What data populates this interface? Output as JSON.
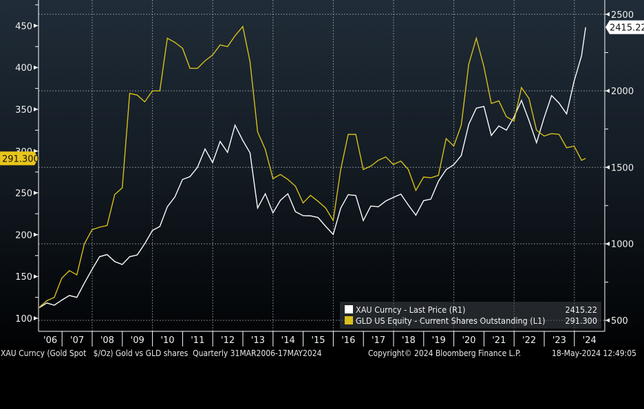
{
  "chart_data": {
    "type": "line",
    "x_dates": [
      "2006-03-31",
      "2006-06-30",
      "2006-09-29",
      "2006-12-29",
      "2007-03-30",
      "2007-06-29",
      "2007-09-28",
      "2007-12-31",
      "2008-03-31",
      "2008-06-30",
      "2008-09-30",
      "2008-12-31",
      "2009-03-31",
      "2009-06-30",
      "2009-09-30",
      "2009-12-31",
      "2010-03-31",
      "2010-06-30",
      "2010-09-30",
      "2010-12-31",
      "2011-03-31",
      "2011-06-30",
      "2011-09-30",
      "2011-12-30",
      "2012-03-30",
      "2012-06-29",
      "2012-09-28",
      "2012-12-31",
      "2013-03-29",
      "2013-06-28",
      "2013-09-30",
      "2013-12-31",
      "2014-03-31",
      "2014-06-30",
      "2014-09-30",
      "2014-12-31",
      "2015-03-31",
      "2015-06-30",
      "2015-09-30",
      "2015-12-31",
      "2016-03-31",
      "2016-06-30",
      "2016-09-30",
      "2016-12-30",
      "2017-03-31",
      "2017-06-30",
      "2017-09-29",
      "2017-12-29",
      "2018-03-30",
      "2018-06-29",
      "2018-09-28",
      "2018-12-31",
      "2019-03-29",
      "2019-06-28",
      "2019-09-30",
      "2019-12-31",
      "2020-03-31",
      "2020-06-30",
      "2020-09-30",
      "2020-12-31",
      "2021-03-31",
      "2021-06-30",
      "2021-09-30",
      "2021-12-31",
      "2022-03-31",
      "2022-06-30",
      "2022-09-30",
      "2022-12-30",
      "2023-03-31",
      "2023-06-30",
      "2023-09-29",
      "2023-12-29",
      "2024-03-29",
      "2024-05-17"
    ],
    "series": [
      {
        "name": "XAU Curncy - Last Price (R1)",
        "axis": "right",
        "color": "#ffffff",
        "values": [
          582,
          613,
          599,
          632,
          662,
          650,
          743,
          834,
          916,
          930,
          884,
          865,
          916,
          927,
          1001,
          1087,
          1113,
          1242,
          1307,
          1421,
          1439,
          1500,
          1620,
          1531,
          1669,
          1598,
          1776,
          1675,
          1595,
          1234,
          1327,
          1202,
          1284,
          1327,
          1210,
          1184,
          1183,
          1172,
          1115,
          1061,
          1233,
          1321,
          1316,
          1152,
          1247,
          1242,
          1280,
          1303,
          1325,
          1253,
          1187,
          1282,
          1292,
          1409,
          1485,
          1517,
          1577,
          1781,
          1887,
          1898,
          1708,
          1770,
          1743,
          1829,
          1937,
          1807,
          1661,
          1824,
          1969,
          1919,
          1849,
          2063,
          2230,
          2415.22
        ],
        "last_value": "2415.22"
      },
      {
        "name": "GLD US Equity - Current Shares Outstanding (L1)",
        "axis": "left",
        "color": "#d8c01c",
        "values": [
          113,
          121,
          125,
          148,
          157,
          152,
          189,
          206,
          209,
          211,
          248,
          256,
          369,
          367,
          359,
          372,
          372,
          435,
          430,
          423,
          399,
          399,
          408,
          415,
          427,
          425,
          438,
          449,
          407,
          323,
          302,
          267,
          272,
          266,
          258,
          238,
          247,
          240,
          232,
          217,
          278,
          320,
          320,
          278,
          282,
          289,
          293,
          284,
          288,
          278,
          253,
          269,
          268,
          271,
          315,
          306,
          331,
          404,
          435,
          401,
          357,
          360,
          341,
          336,
          376,
          363,
          325,
          318,
          321,
          320,
          304,
          306,
          289,
          291.3
        ],
        "last_value": "291.300"
      }
    ],
    "left_axis": {
      "range": [
        87,
        478
      ],
      "ticks": [
        100,
        150,
        200,
        250,
        300,
        350,
        400,
        450
      ],
      "minor_step": 25
    },
    "right_axis": {
      "range": [
        500,
        2500
      ],
      "ticks": [
        500,
        1000,
        1500,
        2000,
        2500
      ],
      "minor_step": 250
    },
    "x_tick_labels": [
      "'06",
      "'07",
      "'08",
      "'09",
      "'10",
      "'11",
      "'12",
      "'13",
      "'14",
      "'15",
      "'16",
      "'17",
      "'18",
      "'19",
      "'20",
      "'21",
      "'22",
      "'23",
      "'24"
    ],
    "grid": true,
    "legend_position": "bottom-right"
  },
  "legend": {
    "items": [
      {
        "label": "XAU Curncy - Last Price (R1)",
        "value": "2415.22",
        "color": "#ffffff"
      },
      {
        "label": "GLD US Equity - Current Shares Outstanding (L1)",
        "value": "291.300",
        "color": "#d8c01c"
      }
    ]
  },
  "footer": {
    "description": "XAU Curncy (Gold Spot   $/Oz) Gold vs GLD shares  Quarterly 31MAR2006-17MAY2024",
    "copyright": "Copyright© 2024 Bloomberg Finance L.P.",
    "timestamp": "18-May-2024 12:49:05"
  },
  "colors": {
    "background_top": "#202c38",
    "background_bottom": "#000000",
    "gold_series": "#d8c01c",
    "grid": "#9aa0a6"
  }
}
